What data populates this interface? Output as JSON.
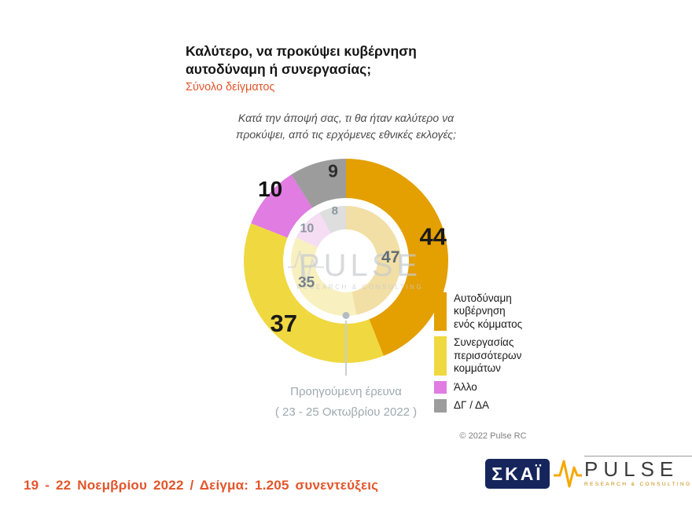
{
  "title": {
    "text": "Καλύτερο, να προκύψει κυβέρνηση\nαυτοδύναμη ή συνεργασίας;",
    "subtitle": "Σύνολο δείγματος"
  },
  "question": {
    "text": "Κατά την άποψή σας, τι θα ήταν καλύτερο να\nπροκύψει, από τις ερχόμενες εθνικές εκλογές;"
  },
  "chart_data": {
    "type": "donut",
    "title": "Καλύτερο, να προκύψει κυβέρνηση αυτοδύναμη ή συνεργασίας;",
    "unit": "%",
    "categories": [
      "Αυτοδύναμη κυβέρνηση ενός κόμματος",
      "Συνεργασίας περισσότερων κομμάτων",
      "Άλλο",
      "ΔΓ / ΔΑ"
    ],
    "series": [
      {
        "name": "19 - 22 Νοεμβρίου 2022",
        "ring": "outer",
        "values": [
          44,
          37,
          10,
          9
        ]
      },
      {
        "name": "Προηγούμενη έρευνα ( 23 - 25 Οκτωβρίου 2022 )",
        "ring": "inner",
        "values": [
          47,
          35,
          10,
          8
        ]
      }
    ],
    "colors": [
      "#E49F00",
      "#F0D840",
      "#E07CE2",
      "#9C9C9C"
    ],
    "colors_inner": [
      "#F2DFA6",
      "#F8F0BF",
      "#F5DDF3",
      "#DEDEDE"
    ]
  },
  "callout": {
    "text": "Προηγούμενη έρευνα\n( 23 - 25 Οκτωβρίου  2022 )"
  },
  "legend": {
    "items": [
      {
        "label": "Αυτοδύναμη\nκυβέρνηση\nενός κόμματος",
        "color": "#E49F00"
      },
      {
        "label": "Συνεργασίας\nπερισσότερων\nκομμάτων",
        "color": "#F0D840"
      },
      {
        "label": "Άλλο",
        "color": "#E07CE2"
      },
      {
        "label": "ΔΓ / ΔΑ",
        "color": "#9C9C9C"
      }
    ]
  },
  "watermark": {
    "name": "PULSE",
    "tagline": "RESEARCH & CONSULTING"
  },
  "copyright": "© 2022 Pulse RC",
  "footer": {
    "text": "19 - 22 Νοεμβρίου 2022 / Δείγμα: 1.205 συνεντεύξεις"
  },
  "logos": {
    "skai": "ΣΚΑΪ",
    "pulse_name": "PULSE",
    "pulse_tagline": "RESEARCH & CONSULTING"
  }
}
